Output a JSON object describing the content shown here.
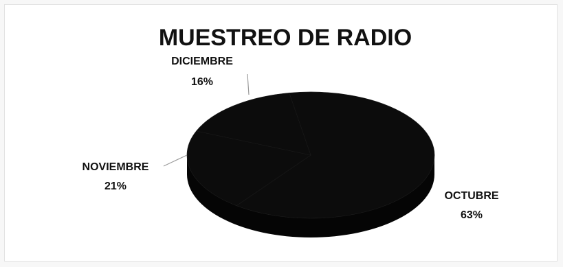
{
  "chart_data": {
    "type": "pie",
    "style": "3d",
    "title": "MUESTREO DE RADIO",
    "slices": [
      {
        "label": "OCTUBRE",
        "percent_label": "63%",
        "value": 63
      },
      {
        "label": "NOVIEMBRE",
        "percent_label": "21%",
        "value": 21
      },
      {
        "label": "DICIEMBRE",
        "percent_label": "16%",
        "value": 16
      }
    ],
    "colors": {
      "slice_fill": "#0c0c0c",
      "slice_side": "#050505",
      "leader_line": "#9a9a9a",
      "text": "#111111"
    },
    "legend": "none",
    "grid": false
  }
}
